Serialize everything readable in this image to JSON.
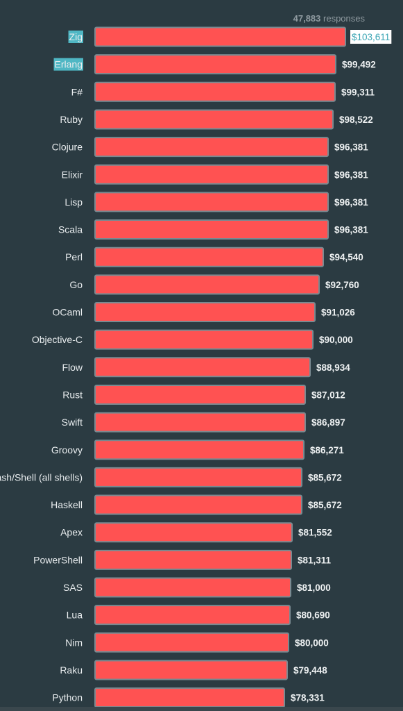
{
  "header": {
    "response_count": "47,883",
    "response_suffix": "responses"
  },
  "highlight": {
    "label_bg": "#4fb7c4",
    "value_bg": "#ffffff",
    "value_text": "#3aa5b4",
    "highlighted_categories": [
      "Zig",
      "Erlang"
    ],
    "highlighted_values": [
      "Zig"
    ]
  },
  "colors": {
    "background": "#2b3b42",
    "bar_fill": "#ff5252",
    "bar_stroke": "#7a8a91"
  },
  "chart_data": {
    "type": "bar",
    "orientation": "horizontal",
    "categories": [
      "Zig",
      "Erlang",
      "F#",
      "Ruby",
      "Clojure",
      "Elixir",
      "Lisp",
      "Scala",
      "Perl",
      "Go",
      "OCaml",
      "Objective-C",
      "Flow",
      "Rust",
      "Swift",
      "Groovy",
      "Bash/Shell (all shells)",
      "Haskell",
      "Apex",
      "PowerShell",
      "SAS",
      "Lua",
      "Nim",
      "Raku",
      "Python"
    ],
    "values": [
      103611,
      99492,
      99311,
      98522,
      96381,
      96381,
      96381,
      96381,
      94540,
      92760,
      91026,
      90000,
      88934,
      87012,
      86897,
      86271,
      85672,
      85672,
      81552,
      81311,
      81000,
      80690,
      80000,
      79448,
      78331
    ],
    "value_labels": [
      "$103,611",
      "$99,492",
      "$99,311",
      "$98,522",
      "$96,381",
      "$96,381",
      "$96,381",
      "$96,381",
      "$94,540",
      "$92,760",
      "$91,026",
      "$90,000",
      "$88,934",
      "$87,012",
      "$86,897",
      "$86,271",
      "$85,672",
      "$85,672",
      "$81,552",
      "$81,311",
      "$81,000",
      "$80,690",
      "$80,000",
      "$79,448",
      "$78,331"
    ],
    "xlim": [
      0,
      103611
    ],
    "grid": false,
    "legend": "none"
  }
}
